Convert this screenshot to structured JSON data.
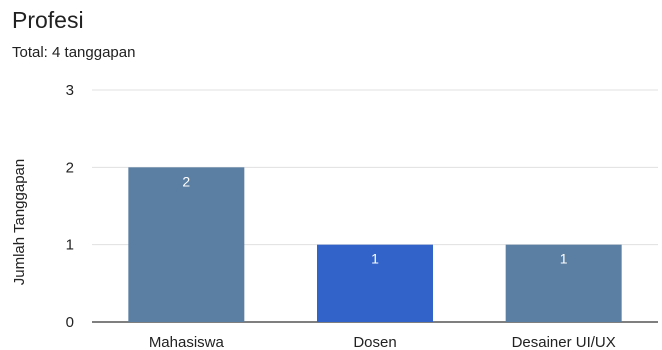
{
  "header": {
    "title": "Profesi",
    "subtitle": "Total: 4 tanggapan"
  },
  "colors": {
    "bar_default": "#5b7fa3",
    "bar_highlight": "#3163c9",
    "grid": "#e0e0e0",
    "baseline": "#333333"
  },
  "chart_data": {
    "type": "bar",
    "categories": [
      "Mahasiswa",
      "Dosen",
      "Desainer UI/UX"
    ],
    "values": [
      2,
      1,
      1
    ],
    "data_labels": [
      "2",
      "1",
      "1"
    ],
    "bar_colors": [
      "#5b7fa3",
      "#3163c9",
      "#5b7fa3"
    ],
    "title": "Profesi",
    "subtitle": "Total: 4 tanggapan",
    "xlabel": "",
    "ylabel": "Jumlah Tanggapan",
    "ylim": [
      0,
      3
    ],
    "yticks": [
      "0",
      "1",
      "2",
      "3"
    ],
    "grid": true,
    "legend": "none"
  }
}
